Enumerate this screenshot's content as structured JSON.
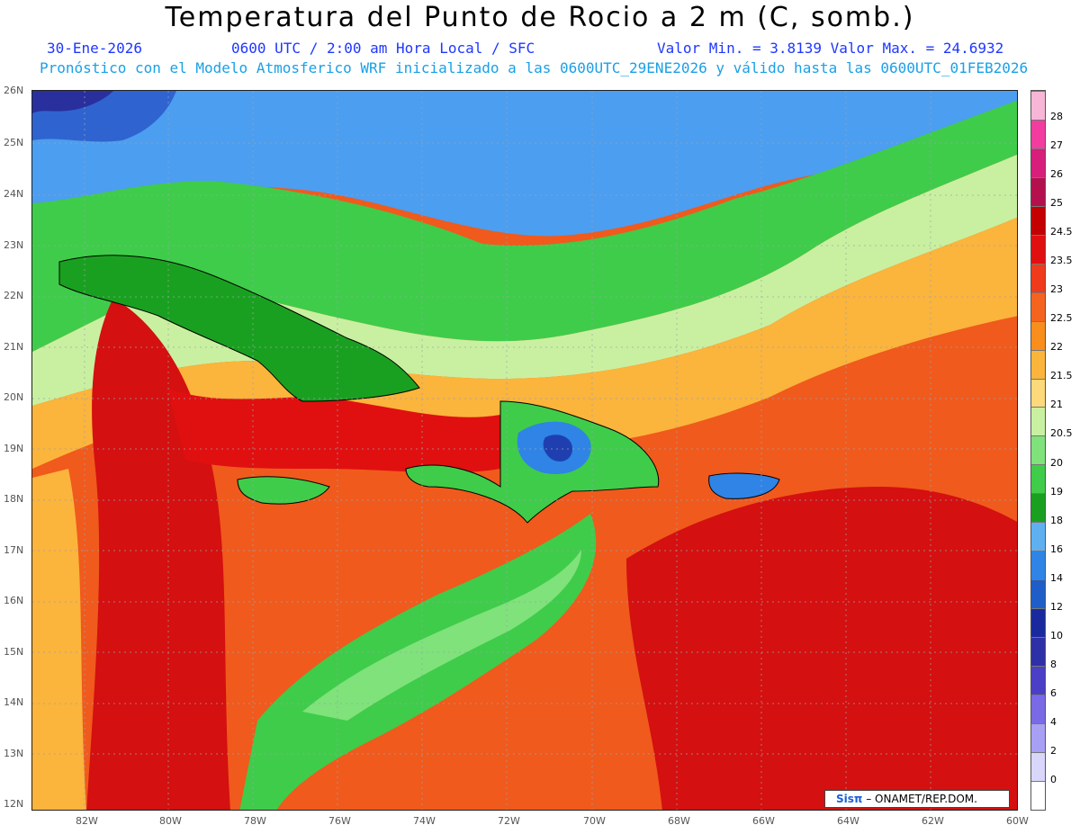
{
  "title": "Temperatura del Punto de Rocio a 2 m (C, somb.)",
  "line1": {
    "date": "30-Ene-2026",
    "time": "0600 UTC / 2:00 am Hora Local / SFC",
    "minmax": "Valor Min. = 3.8139  Valor Max. = 24.6932"
  },
  "line2": "Pronóstico con el Modelo Atmosferico WRF inicializado a las 0600UTC_29ENE2026 y válido hasta las  0600UTC_01FEB2026",
  "lat_labels": [
    "26N",
    "25N",
    "24N",
    "23N",
    "22N",
    "21N",
    "20N",
    "19N",
    "18N",
    "17N",
    "16N",
    "15N",
    "14N",
    "13N",
    "12N"
  ],
  "lon_labels": [
    "82W",
    "80W",
    "78W",
    "76W",
    "74W",
    "72W",
    "70W",
    "68W",
    "66W",
    "64W",
    "62W",
    "60W"
  ],
  "colorbar": {
    "levels": [
      "28",
      "27",
      "26",
      "25",
      "24.5",
      "23.5",
      "23",
      "22.5",
      "22",
      "21.5",
      "21",
      "20.5",
      "20",
      "19",
      "18",
      "16",
      "14",
      "12",
      "10",
      "8",
      "6",
      "4",
      "2",
      "0"
    ],
    "colors": [
      "#f7b6d6",
      "#f33ca0",
      "#d61e7a",
      "#b4104e",
      "#c40000",
      "#e01010",
      "#f03a1c",
      "#f5641e",
      "#f98e1c",
      "#fbb43c",
      "#fcd97a",
      "#c9f0a0",
      "#7fe27a",
      "#3fcc4a",
      "#1aa020",
      "#5fb0f0",
      "#2f84e6",
      "#1f5ec8",
      "#1a2a9e",
      "#2e30a8",
      "#4b3fc8",
      "#7a6ae6",
      "#a8a0f4",
      "#d8d6fb",
      "#ffffff"
    ]
  },
  "credit": {
    "brand": "Sisπ",
    "text": "– ONAMET/REP.DOM."
  }
}
